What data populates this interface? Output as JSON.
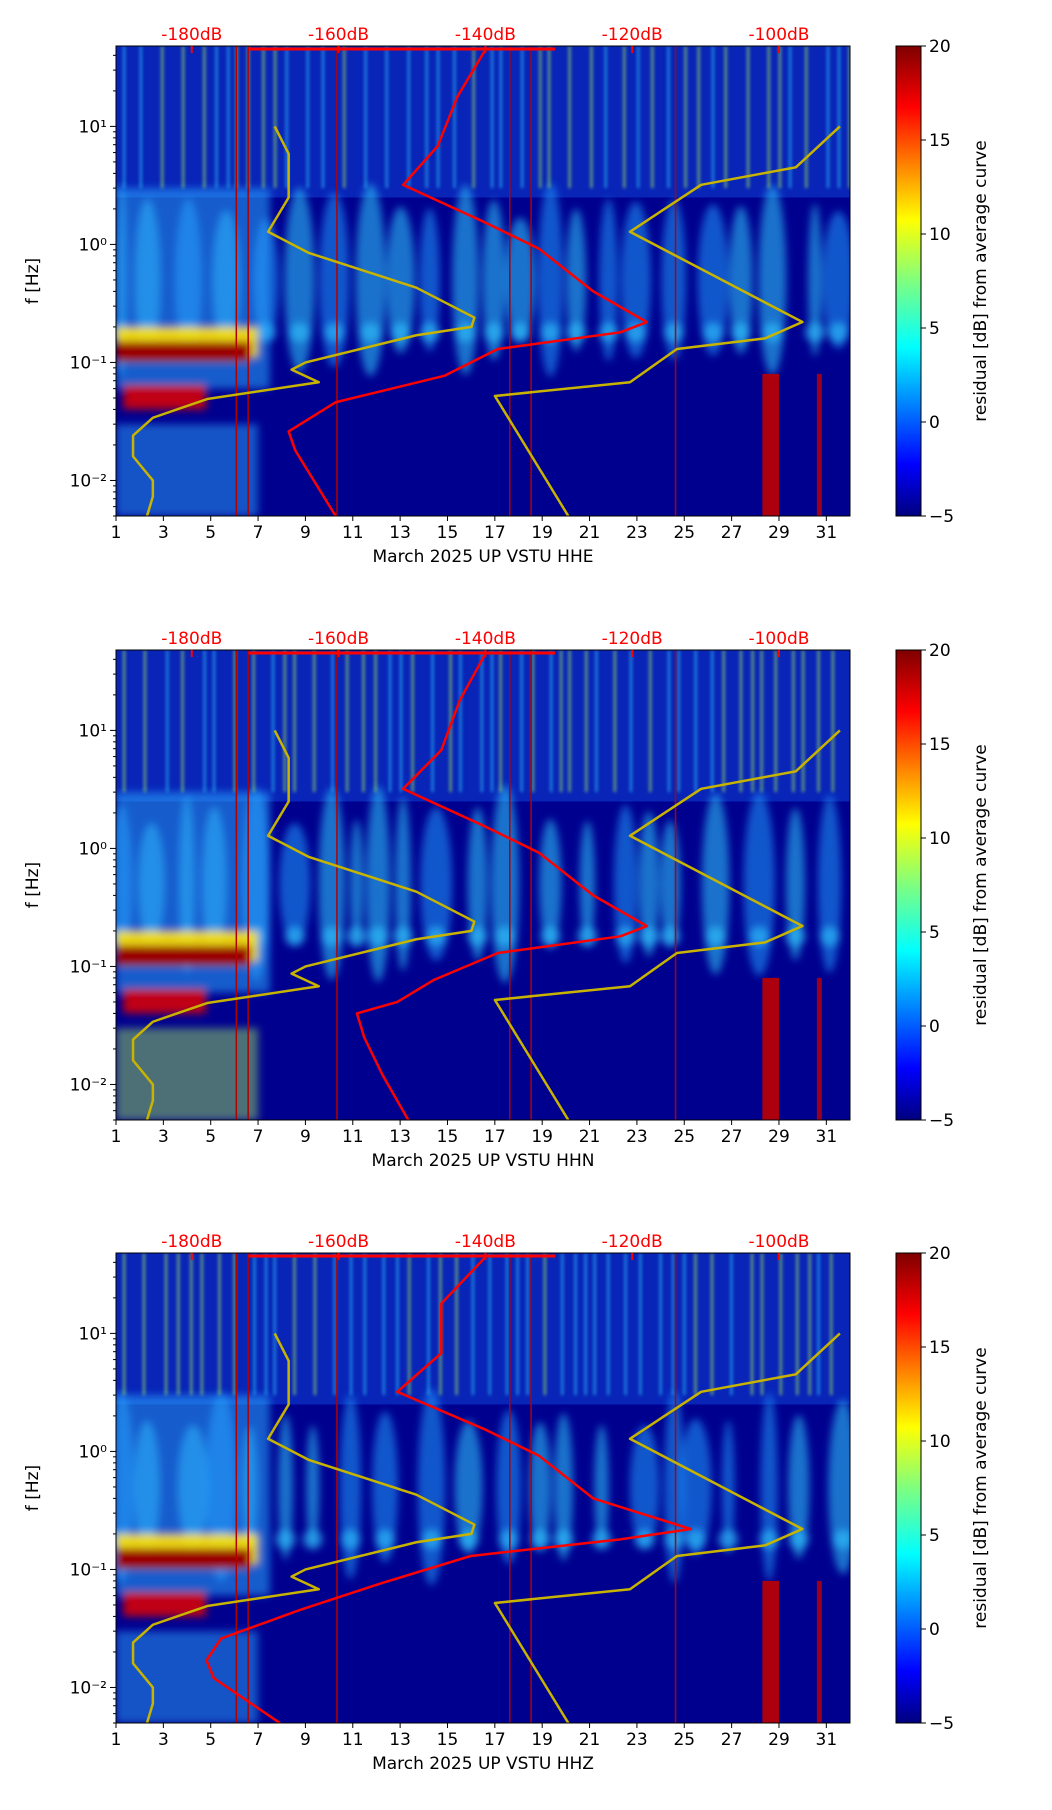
{
  "chart_data": {
    "type": "heatmap",
    "shared": {
      "x_ticks": [
        "1",
        "3",
        "5",
        "7",
        "9",
        "11",
        "13",
        "15",
        "17",
        "19",
        "21",
        "23",
        "25",
        "27",
        "29",
        "31"
      ],
      "x_range": [
        1,
        32
      ],
      "ylabel": "f [Hz]",
      "y_scale": "log",
      "y_range": [
        0.005,
        48
      ],
      "y_ticks": [
        {
          "value": 0.01,
          "label": "10⁻²"
        },
        {
          "value": 0.1,
          "label": "10⁻¹"
        },
        {
          "value": 1,
          "label": "10⁰"
        },
        {
          "value": 10,
          "label": "10¹"
        }
      ],
      "top_axis_ticks": [
        "-180dB",
        "-160dB",
        "-140dB",
        "-120dB",
        "-100dB"
      ],
      "top_axis_values": [
        -180,
        -160,
        -140,
        -120,
        -100
      ],
      "top_axis_color": "#ff0000",
      "colorbar_label": "residual [dB] from average curve",
      "colorbar_range": [
        -5,
        20
      ],
      "colorbar_ticks": [
        "−5",
        "0",
        "5",
        "10",
        "15",
        "20"
      ],
      "colormap": "jet",
      "low_noise_model": {
        "color": "#c8b400",
        "points": [
          [
            10,
            -168.7
          ],
          [
            5.86,
            -166.8
          ],
          [
            2.5,
            -166.8
          ],
          [
            1.28,
            -169.6
          ],
          [
            0.85,
            -164.1
          ],
          [
            0.43,
            -149.4
          ],
          [
            0.24,
            -141.5
          ],
          [
            0.2,
            -141.9
          ],
          [
            0.17,
            -149.4
          ],
          [
            0.1,
            -164.5
          ],
          [
            0.087,
            -166.4
          ],
          [
            0.068,
            -162.7
          ],
          [
            0.049,
            -177.9
          ],
          [
            0.034,
            -185.3
          ],
          [
            0.024,
            -188
          ],
          [
            0.016,
            -188
          ],
          [
            0.01,
            -185.3
          ],
          [
            0.0073,
            -185.3
          ],
          [
            0.005,
            -186.1
          ]
        ]
      },
      "high_noise_model": {
        "color": "#c8b400",
        "points": [
          [
            10,
            -91.7
          ],
          [
            4.5,
            -97.7
          ],
          [
            3.2,
            -110.6
          ],
          [
            1.28,
            -120.3
          ],
          [
            0.22,
            -96.8
          ],
          [
            0.16,
            -101.9
          ],
          [
            0.13,
            -113.9
          ],
          [
            0.068,
            -120.3
          ],
          [
            0.052,
            -138.7
          ],
          [
            0.005,
            -128.7
          ]
        ]
      }
    },
    "panels": [
      {
        "xlabel": "March 2025 UP VSTU  HHE",
        "average_psd": {
          "color": "#ff0000",
          "points": [
            [
              43.5,
              -140.1
            ],
            [
              17.9,
              -143.8
            ],
            [
              6.8,
              -146.5
            ],
            [
              3.2,
              -151.2
            ],
            [
              1.54,
              -140.1
            ],
            [
              0.92,
              -132.7
            ],
            [
              0.4,
              -125.3
            ],
            [
              0.22,
              -118
            ],
            [
              0.18,
              -121.6
            ],
            [
              0.13,
              -138.3
            ],
            [
              0.077,
              -145.6
            ],
            [
              0.046,
              -160.4
            ],
            [
              0.026,
              -166.8
            ],
            [
              0.018,
              -165.9
            ],
            [
              0.005,
              -160.4
            ]
          ]
        }
      },
      {
        "xlabel": "March 2025 UP VSTU  HHN",
        "average_psd": {
          "color": "#ff0000",
          "points": [
            [
              43.5,
              -140.1
            ],
            [
              17.9,
              -143.5
            ],
            [
              6.8,
              -146
            ],
            [
              3.2,
              -151.2
            ],
            [
              1.54,
              -140.1
            ],
            [
              0.92,
              -132.7
            ],
            [
              0.4,
              -125.3
            ],
            [
              0.22,
              -118
            ],
            [
              0.18,
              -121.6
            ],
            [
              0.13,
              -138.3
            ],
            [
              0.077,
              -147
            ],
            [
              0.05,
              -152
            ],
            [
              0.04,
              -157.5
            ],
            [
              0.025,
              -156.5
            ],
            [
              0.012,
              -154
            ],
            [
              0.005,
              -150.5
            ]
          ]
        }
      },
      {
        "xlabel": "March 2025 UP VSTU  HHZ",
        "average_psd": {
          "color": "#ff0000",
          "points": [
            [
              43.5,
              -140.1
            ],
            [
              17.9,
              -146
            ],
            [
              6.8,
              -146
            ],
            [
              3.2,
              -152
            ],
            [
              1.54,
              -140.1
            ],
            [
              0.92,
              -132.7
            ],
            [
              0.4,
              -125.3
            ],
            [
              0.22,
              -112
            ],
            [
              0.18,
              -121.6
            ],
            [
              0.13,
              -142
            ],
            [
              0.077,
              -154
            ],
            [
              0.046,
              -165
            ],
            [
              0.026,
              -176
            ],
            [
              0.017,
              -178
            ],
            [
              0.012,
              -177
            ],
            [
              0.005,
              -168
            ]
          ]
        }
      }
    ]
  }
}
